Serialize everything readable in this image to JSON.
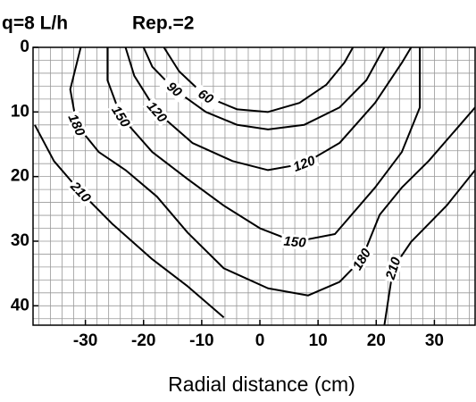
{
  "chart_data": {
    "type": "contour",
    "title": "q=8 L/h",
    "subtitle": "Rep.=2",
    "x_label": "Radial distance (cm)",
    "xlim": [
      -39,
      37
    ],
    "ylim": [
      0,
      43
    ],
    "y_inverted": true,
    "xticks": [
      -30,
      -20,
      -10,
      0,
      10,
      20,
      30
    ],
    "yticks": [
      0,
      10,
      20,
      30,
      40
    ],
    "grid": true,
    "grid_step": 2,
    "color": "#000000",
    "series": [
      {
        "name": "60",
        "x": [
          -16.5,
          -13.9,
          -9.3,
          -3.9,
          1.4,
          6.8,
          11.4,
          14.5,
          16.0
        ],
        "y": [
          0,
          3.7,
          7.6,
          9.6,
          10.0,
          8.6,
          5.8,
          2.4,
          0
        ]
      },
      {
        "name": "90",
        "x": [
          -20.0,
          -18.5,
          -14.7,
          -9.3,
          -3.9,
          1.4,
          7.6,
          13.7,
          18.3,
          21.4
        ],
        "y": [
          0,
          3.0,
          6.5,
          10.0,
          12.0,
          12.7,
          12.0,
          9.3,
          5.1,
          0
        ]
      },
      {
        "name": "120",
        "x": [
          -23.1,
          -21.6,
          -17.7,
          -11.6,
          -4.7,
          1.4,
          7.6,
          13.7,
          19.8,
          24.4,
          26.0
        ],
        "y": [
          0,
          4.4,
          10.0,
          14.8,
          17.6,
          19.0,
          18.0,
          14.8,
          8.6,
          2.4,
          0
        ]
      },
      {
        "name": "150",
        "x": [
          -26.2,
          -26.2,
          -23.9,
          -18.5,
          -12.4,
          -6.2,
          0,
          6.0,
          12.9,
          19.8,
          24.4,
          27.5,
          27.5
        ],
        "y": [
          0,
          5.1,
          10.7,
          16.2,
          20.4,
          24.5,
          28.0,
          30.1,
          28.9,
          21.7,
          16.2,
          9.3,
          0
        ]
      },
      {
        "name": "180",
        "x": [
          -30.8,
          -32.6,
          -31.5,
          -27.7,
          -23.1,
          -17.7,
          -12.4,
          -6.2,
          1.4,
          8.3,
          13.7,
          17.5,
          20.6,
          24.4,
          29.0,
          34.4,
          37.0
        ],
        "y": [
          0,
          6.5,
          12.0,
          16.2,
          19.0,
          23.1,
          28.7,
          34.2,
          37.3,
          38.4,
          36.3,
          32.8,
          25.9,
          21.7,
          17.6,
          12.0,
          9.3
        ]
      },
      {
        "name": "210",
        "x": [
          -38.7,
          -35.4,
          -30.8,
          -25.4,
          -18.5,
          -12.4,
          -6.2,
          null,
          21.4,
          22.9,
          26.0,
          32.1,
          37.0
        ],
        "y": [
          12.0,
          17.6,
          22.4,
          27.3,
          32.8,
          37.0,
          41.8,
          null,
          43.0,
          34.2,
          30.1,
          24.5,
          19.0
        ]
      }
    ]
  }
}
